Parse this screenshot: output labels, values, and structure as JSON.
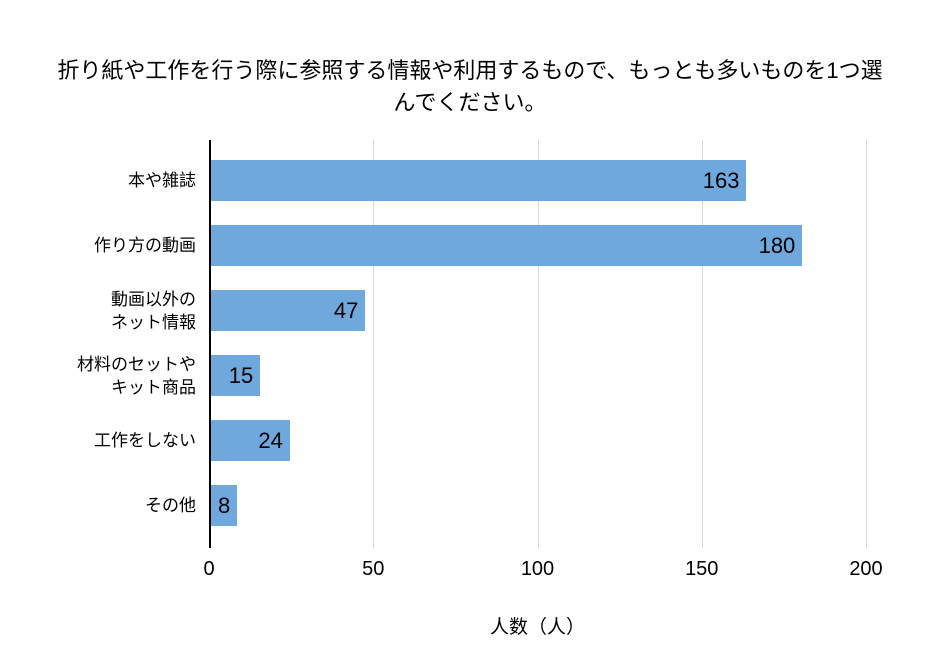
{
  "title": {
    "line1": "折り紙や工作を行う際に参照する情報や利用するもので、もっとも多いものを1つ選",
    "line2": "んでください。"
  },
  "chart_data": {
    "type": "bar",
    "orientation": "horizontal",
    "title": "折り紙や工作を行う際に参照する情報や利用するもので、もっとも多いものを1つ選んでください。",
    "categories": [
      "本や雑誌",
      "作り方の動画",
      "動画以外の\nネット情報",
      "材料のセットや\nキット商品",
      "工作をしない",
      "その他"
    ],
    "values": [
      163,
      180,
      47,
      15,
      24,
      8
    ],
    "xlabel": "人数（人）",
    "ylabel": "",
    "xlim": [
      0,
      200
    ],
    "xticks": [
      0,
      50,
      100,
      150,
      200
    ],
    "value_labels": "inside-end",
    "grid": "vertical-only",
    "legend": "none"
  },
  "colors": {
    "bar": "#6FA8DC",
    "gridline": "#d9d9d9",
    "axis_line": "#000000",
    "text": "#000000",
    "background": "#ffffff"
  }
}
